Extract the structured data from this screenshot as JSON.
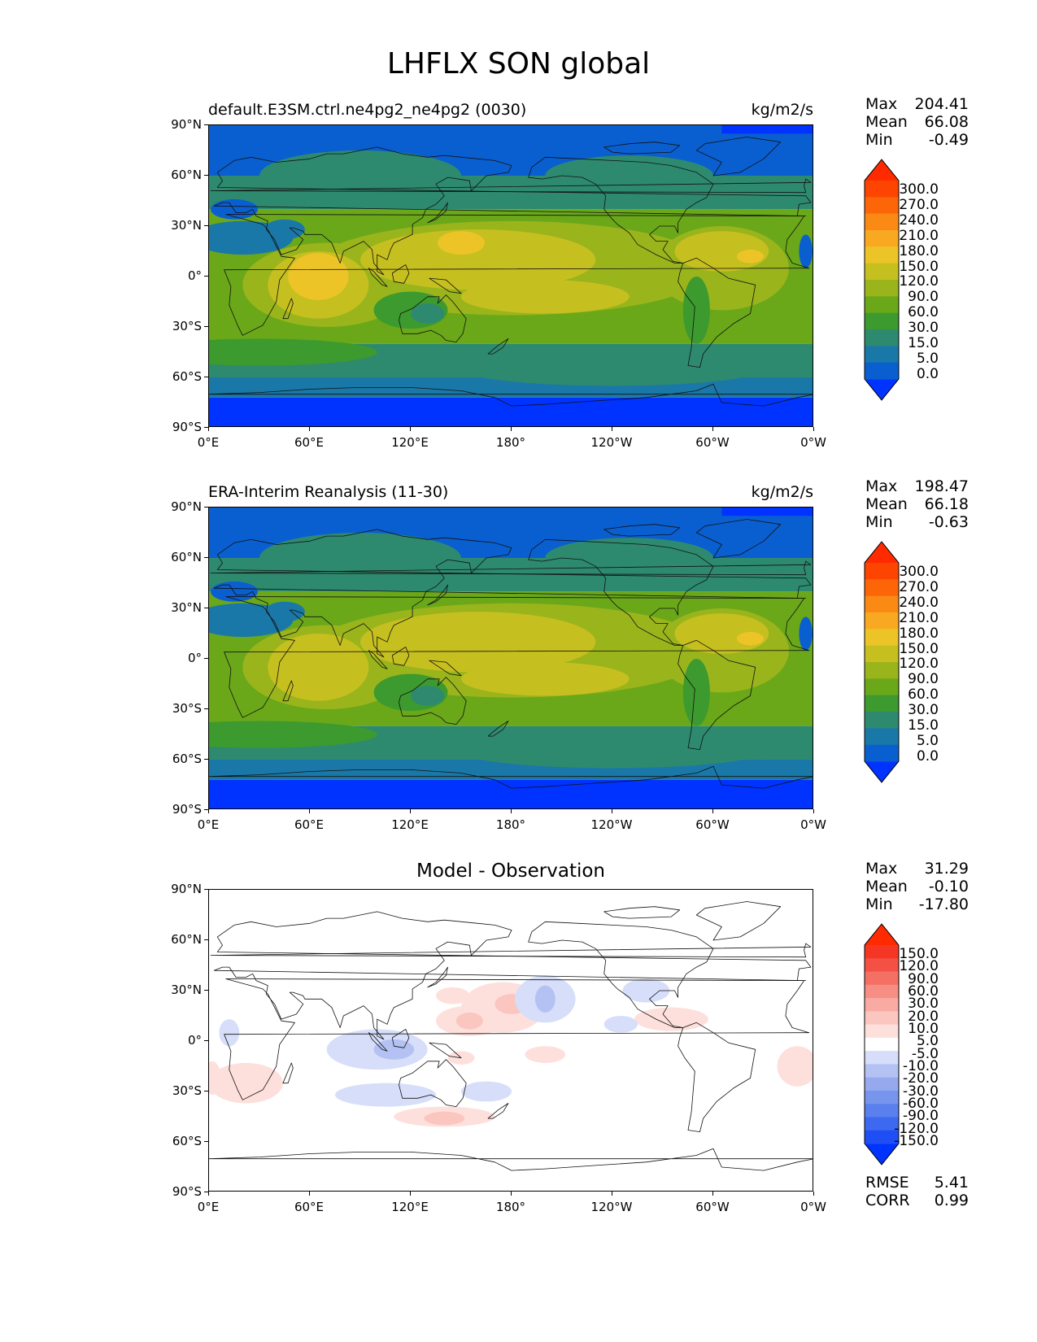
{
  "figure": {
    "title": "LHFLX SON global"
  },
  "axes": {
    "x_ticks": [
      "0°E",
      "60°E",
      "120°E",
      "180°",
      "120°W",
      "60°W",
      "0°W"
    ],
    "y_ticks": [
      "90°N",
      "60°N",
      "30°N",
      "0°",
      "30°S",
      "60°S",
      "90°S"
    ]
  },
  "panels": [
    {
      "id": "test",
      "title": "default.E3SM.ctrl.ne4pg2_ne4pg2 (0030)",
      "units": "kg/m2/s",
      "stats": [
        {
          "label": "Max",
          "value": "204.41"
        },
        {
          "label": "Mean",
          "value": "66.08"
        },
        {
          "label": "Min",
          "value": "-0.49"
        }
      ],
      "colorbar": {
        "levels": [
          "0.0",
          "5.0",
          "15.0",
          "30.0",
          "60.0",
          "90.0",
          "120.0",
          "150.0",
          "180.0",
          "210.0",
          "240.0",
          "270.0",
          "300.0"
        ],
        "colors": [
          "#0033ff",
          "#0a5fd0",
          "#1a78a8",
          "#2e8a6e",
          "#3d9a2e",
          "#6aa81a",
          "#9ab41c",
          "#c6bf20",
          "#ecc428",
          "#f9a822",
          "#fb8a14",
          "#fc6608",
          "#fd4400",
          "#ff2a00"
        ]
      }
    },
    {
      "id": "reference",
      "title": "ERA-Interim Reanalysis (11-30)",
      "units": "kg/m2/s",
      "stats": [
        {
          "label": "Max",
          "value": "198.47"
        },
        {
          "label": "Mean",
          "value": "66.18"
        },
        {
          "label": "Min",
          "value": "-0.63"
        }
      ],
      "colorbar": {
        "levels": [
          "0.0",
          "5.0",
          "15.0",
          "30.0",
          "60.0",
          "90.0",
          "120.0",
          "150.0",
          "180.0",
          "210.0",
          "240.0",
          "270.0",
          "300.0"
        ],
        "colors": [
          "#0033ff",
          "#0a5fd0",
          "#1a78a8",
          "#2e8a6e",
          "#3d9a2e",
          "#6aa81a",
          "#9ab41c",
          "#c6bf20",
          "#ecc428",
          "#f9a822",
          "#fb8a14",
          "#fc6608",
          "#fd4400",
          "#ff2a00"
        ]
      }
    },
    {
      "id": "difference",
      "title": "Model - Observation",
      "stats": [
        {
          "label": "Max",
          "value": "31.29"
        },
        {
          "label": "Mean",
          "value": "-0.10"
        },
        {
          "label": "Min",
          "value": "-17.80"
        }
      ],
      "extra_stats": [
        {
          "label": "RMSE",
          "value": "5.41"
        },
        {
          "label": "CORR",
          "value": "0.99"
        }
      ],
      "colorbar": {
        "levels": [
          "-150.0",
          "-120.0",
          "-90.0",
          "-60.0",
          "-30.0",
          "-20.0",
          "-10.0",
          "-5.0",
          "5.0",
          "10.0",
          "20.0",
          "30.0",
          "60.0",
          "90.0",
          "120.0",
          "150.0"
        ],
        "colors": [
          "#0033ff",
          "#1f4ef5",
          "#3d68f0",
          "#5a80ee",
          "#7895ee",
          "#96a9ef",
          "#b4c2f3",
          "#d6defa",
          "#ffffff",
          "#fde0dc",
          "#fbc6c0",
          "#f9aaa2",
          "#f78e84",
          "#f57064",
          "#f45044",
          "#f53624",
          "#ff2a00"
        ]
      }
    }
  ]
}
